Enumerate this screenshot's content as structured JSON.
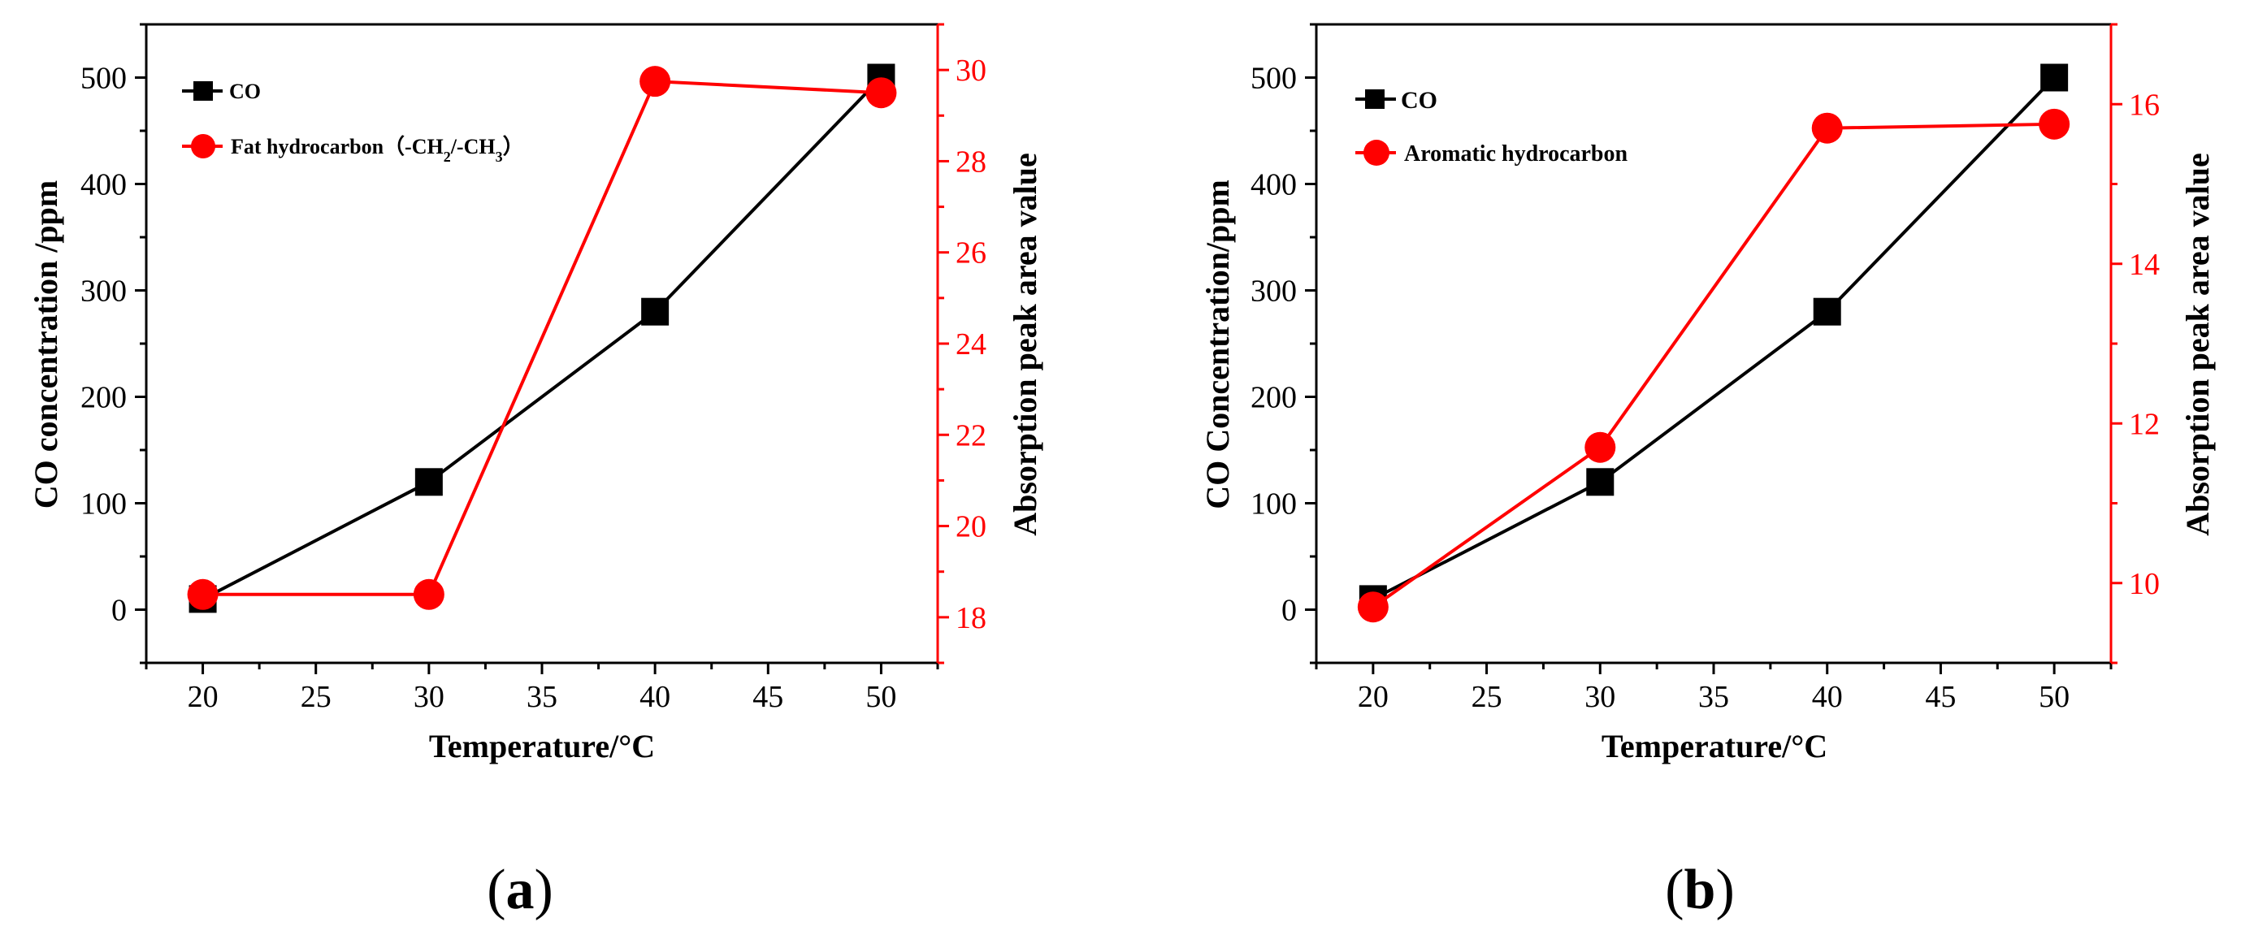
{
  "figure": {
    "panels": [
      {
        "label_open": "(",
        "label_letter": "a",
        "label_close": ")"
      },
      {
        "label_open": "(",
        "label_letter": "b",
        "label_close": ")"
      }
    ]
  },
  "colors": {
    "co": "#000000",
    "hydrocarbon": "#ff0000"
  },
  "chart_data": [
    {
      "type": "line",
      "panel": "a",
      "xlabel": "Temperature/°C",
      "ylabel": "CO concentration /ppm",
      "y2label": "Absorption peak area value",
      "xlim": [
        17.5,
        52.5
      ],
      "ylim": [
        -50,
        550
      ],
      "y2lim": [
        17,
        31
      ],
      "xticks": [
        20,
        25,
        30,
        35,
        40,
        45,
        50
      ],
      "yticks": [
        0,
        100,
        200,
        300,
        400,
        500
      ],
      "y2ticks": [
        18,
        20,
        22,
        24,
        26,
        28,
        30
      ],
      "x": [
        20,
        30,
        40,
        50
      ],
      "series": [
        {
          "name": "CO",
          "axis": "left",
          "marker": "square",
          "color": "#000000",
          "values": [
            10,
            120,
            280,
            500
          ]
        },
        {
          "name": "Fat hydrocarbon（-CH2/-CH3）",
          "axis": "right",
          "marker": "circle",
          "color": "#ff0000",
          "values": [
            18.5,
            18.5,
            29.75,
            29.5
          ]
        }
      ],
      "legend": {
        "position": "top-left",
        "entries": [
          {
            "text": "CO"
          },
          {
            "text_prefix": "Fat hydrocarbon（-CH",
            "sub1": "2",
            "mid": "/-CH",
            "sub2": "3",
            "suffix": "）"
          }
        ]
      }
    },
    {
      "type": "line",
      "panel": "b",
      "xlabel": "Temperature/°C",
      "ylabel": "CO Concentration/ppm",
      "y2label": "Absorption peak area value",
      "xlim": [
        17.5,
        52.5
      ],
      "ylim": [
        -50,
        550
      ],
      "y2lim": [
        9,
        17
      ],
      "xticks": [
        20,
        25,
        30,
        35,
        40,
        45,
        50
      ],
      "yticks": [
        0,
        100,
        200,
        300,
        400,
        500
      ],
      "y2ticks": [
        10,
        12,
        14,
        16
      ],
      "x": [
        20,
        30,
        40,
        50
      ],
      "series": [
        {
          "name": "CO",
          "axis": "left",
          "marker": "square",
          "color": "#000000",
          "values": [
            10,
            120,
            280,
            500
          ]
        },
        {
          "name": "Aromatic hydrocarbon",
          "axis": "right",
          "marker": "circle",
          "color": "#ff0000",
          "values": [
            9.7,
            11.7,
            15.7,
            15.75
          ]
        }
      ],
      "legend": {
        "position": "top-left",
        "entries": [
          {
            "text": "CO"
          },
          {
            "text": "Aromatic hydrocarbon"
          }
        ]
      }
    }
  ]
}
